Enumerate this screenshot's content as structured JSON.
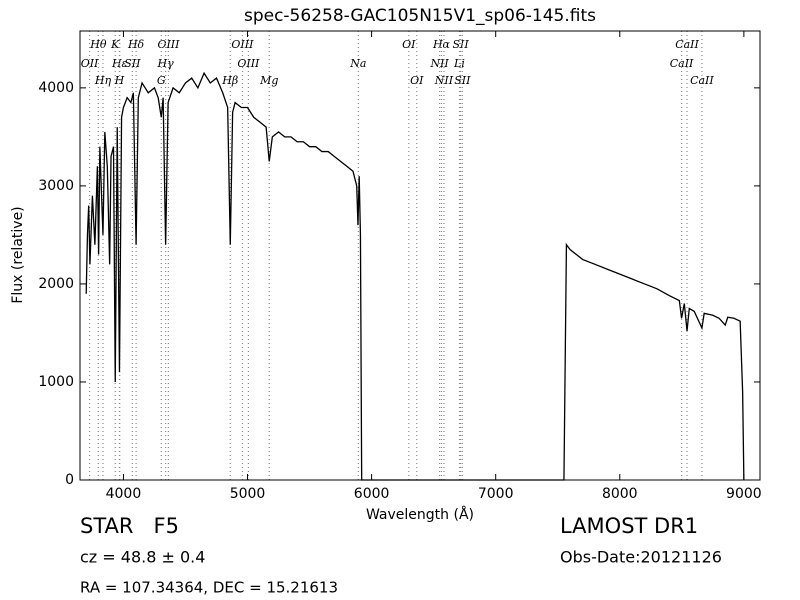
{
  "chart_data": {
    "type": "line",
    "title": "spec-56258-GAC105N15V1_sp06-145.fits",
    "x_label": "Wavelength (Å)",
    "y_label": "Flux (relative)",
    "xlim": [
      3650,
      9130
    ],
    "ylim": [
      0,
      4580
    ],
    "xticks": [
      4000,
      5000,
      6000,
      7000,
      8000,
      9000
    ],
    "yticks": [
      0,
      1000,
      2000,
      3000,
      4000
    ],
    "grid": false,
    "series": [
      {
        "name": "Flux",
        "color": "#000000",
        "x": [
          3700,
          3710,
          3720,
          3730,
          3750,
          3770,
          3790,
          3800,
          3810,
          3835,
          3850,
          3870,
          3889,
          3900,
          3920,
          3934,
          3950,
          3968,
          3985,
          4000,
          4030,
          4060,
          4080,
          4102,
          4120,
          4150,
          4200,
          4250,
          4280,
          4305,
          4320,
          4340,
          4360,
          4400,
          4450,
          4500,
          4550,
          4600,
          4650,
          4700,
          4750,
          4800,
          4840,
          4861,
          4880,
          4900,
          4950,
          5000,
          5050,
          5100,
          5150,
          5175,
          5200,
          5250,
          5300,
          5350,
          5400,
          5450,
          5500,
          5550,
          5600,
          5650,
          5700,
          5750,
          5800,
          5850,
          5880,
          5890,
          5900,
          5910,
          5920,
          6000,
          7000,
          7550,
          7570,
          7600,
          7650,
          7700,
          7800,
          7900,
          8000,
          8100,
          8200,
          8300,
          8400,
          8480,
          8498,
          8520,
          8542,
          8560,
          8600,
          8662,
          8680,
          8750,
          8800,
          8850,
          8870,
          8920,
          8970,
          8990,
          9000
        ],
        "values": [
          1900,
          2500,
          2800,
          2200,
          2900,
          2400,
          3200,
          2300,
          3400,
          2500,
          3550,
          3200,
          2200,
          3300,
          3400,
          1000,
          3600,
          1100,
          3700,
          3800,
          3900,
          3850,
          3950,
          2400,
          3900,
          4050,
          3950,
          4000,
          3900,
          3700,
          3900,
          2400,
          3850,
          4000,
          3950,
          4050,
          4100,
          4000,
          4150,
          4050,
          4100,
          3950,
          3800,
          2400,
          3750,
          3850,
          3800,
          3800,
          3700,
          3650,
          3600,
          3250,
          3500,
          3550,
          3500,
          3500,
          3450,
          3450,
          3400,
          3400,
          3350,
          3350,
          3300,
          3250,
          3200,
          3150,
          3000,
          2600,
          3100,
          2500,
          0,
          0,
          0,
          0,
          2400,
          2350,
          2300,
          2250,
          2200,
          2150,
          2100,
          2050,
          2000,
          1950,
          1880,
          1830,
          1650,
          1800,
          1520,
          1750,
          1720,
          1550,
          1700,
          1680,
          1650,
          1580,
          1660,
          1650,
          1620,
          900,
          0
        ]
      }
    ],
    "line_color": "#44bb44",
    "line_labels": [
      [
        {
          "label": "Hθ",
          "x": 3798
        },
        {
          "label": "K",
          "x": 3934
        },
        {
          "label": "Hδ",
          "x": 4102
        },
        {
          "label": "OIII",
          "x": 4363
        },
        {
          "label": "OIII",
          "x": 4959
        },
        {
          "label": "OI",
          "x": 6300
        },
        {
          "label": "Hα",
          "x": 6563
        },
        {
          "label": "SII",
          "x": 6717
        },
        {
          "label": "CaII",
          "x": 8542
        }
      ],
      [
        {
          "label": "OII",
          "x": 3727
        },
        {
          "label": "Hε",
          "x": 3970
        },
        {
          "label": "SII",
          "x": 4072
        },
        {
          "label": "Hγ",
          "x": 4340
        },
        {
          "label": "OIII",
          "x": 5007
        },
        {
          "label": "Na",
          "x": 5893
        },
        {
          "label": "NII",
          "x": 6548
        },
        {
          "label": "Li",
          "x": 6708
        },
        {
          "label": "CaII",
          "x": 8498
        }
      ],
      [
        {
          "label": "Hη",
          "x": 3835
        },
        {
          "label": "H",
          "x": 3968
        },
        {
          "label": "G",
          "x": 4305
        },
        {
          "label": "Hβ",
          "x": 4861
        },
        {
          "label": "Mg",
          "x": 5175
        },
        {
          "label": "OI",
          "x": 6364
        },
        {
          "label": "NII",
          "x": 6583
        },
        {
          "label": "SII",
          "x": 6731
        },
        {
          "label": "CaII",
          "x": 8662
        }
      ]
    ],
    "object_class": "STAR   F5",
    "redshift": "cz = 48.8 ± 0.4",
    "coords": "RA = 107.34364, DEC = 15.21613",
    "survey": "LAMOST DR1",
    "obs_date": "Obs-Date:20121126"
  }
}
